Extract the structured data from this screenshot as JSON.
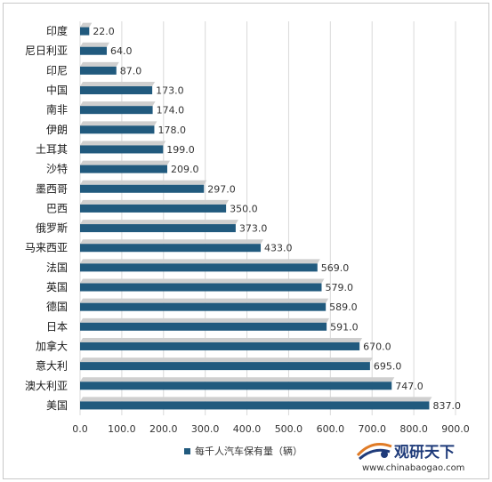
{
  "chart_data": {
    "type": "bar",
    "orientation": "horizontal",
    "categories": [
      "印度",
      "尼日利亚",
      "印尼",
      "中国",
      "南非",
      "伊朗",
      "土耳其",
      "沙特",
      "墨西哥",
      "巴西",
      "俄罗斯",
      "马来西亚",
      "法国",
      "英国",
      "德国",
      "日本",
      "加拿大",
      "意大利",
      "澳大利亚",
      "美国"
    ],
    "series": [
      {
        "name": "每千人汽车保有量（辆）",
        "values": [
          22.0,
          64.0,
          87.0,
          173.0,
          174.0,
          178.0,
          199.0,
          209.0,
          297.0,
          350.0,
          373.0,
          433.0,
          569.0,
          579.0,
          589.0,
          591.0,
          670.0,
          695.0,
          747.0,
          837.0
        ]
      }
    ],
    "value_labels": [
      "22.0",
      "64.0",
      "87.0",
      "173.0",
      "174.0",
      "178.0",
      "199.0",
      "209.0",
      "297.0",
      "350.0",
      "373.0",
      "433.0",
      "569.0",
      "579.0",
      "589.0",
      "591.0",
      "670.0",
      "695.0",
      "747.0",
      "837.0"
    ],
    "xlim": [
      0,
      900
    ],
    "xticks": [
      0,
      100,
      200,
      300,
      400,
      500,
      600,
      700,
      800,
      900
    ],
    "xtick_labels": [
      "0.0",
      "100.0",
      "200.0",
      "300.0",
      "400.0",
      "500.0",
      "600.0",
      "700.0",
      "800.0",
      "900.0"
    ],
    "grid": "vertical",
    "legend": "bottom",
    "colors": {
      "bar": "#215a7e",
      "shadow": "#cfcfcf",
      "grid": "#d9d9d9",
      "logo": "#1f3b7a"
    }
  },
  "watermark": {
    "name": "观研天下",
    "url": "www.chinabaogao.com"
  }
}
